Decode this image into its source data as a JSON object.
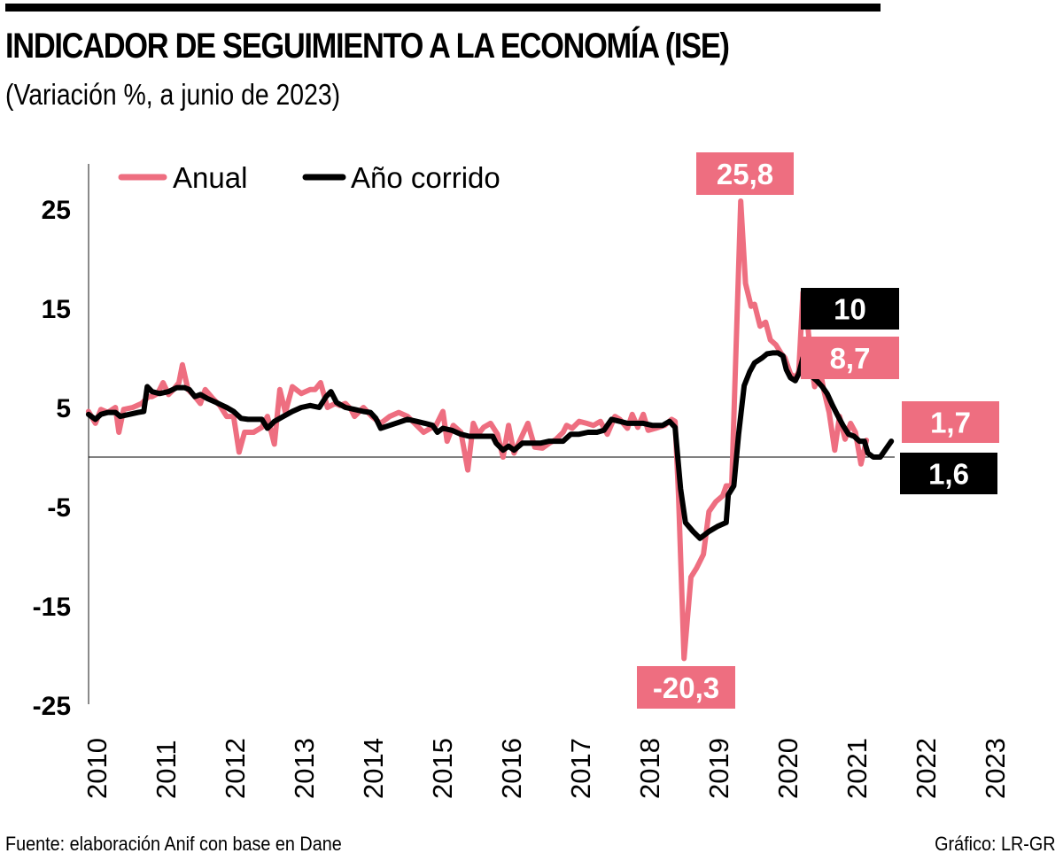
{
  "header": {
    "title": "INDICADOR DE SEGUIMIENTO A LA ECONOMÍA (ISE)",
    "subtitle": "(Variación %, a junio de 2023)"
  },
  "footer": {
    "source": "Fuente: elaboración Anif con base en Dane",
    "credit": "Gráfico: LR-GR"
  },
  "colors": {
    "anual": "#EE6E80",
    "ano_corrido": "#000000",
    "axis": "#8a8a8a"
  },
  "chart_data": {
    "type": "line",
    "title": "INDICADOR DE SEGUIMIENTO A LA ECONOMÍA (ISE)",
    "subtitle": "(Variación %, a junio de 2023)",
    "xlabel": "",
    "ylabel": "",
    "ylim": [
      -25,
      25
    ],
    "xlim": [
      2009.87,
      2023.25
    ],
    "yticks": [
      25,
      15,
      5,
      -5,
      -15,
      -25
    ],
    "ytick_labels": [
      "25",
      "15",
      "5",
      "-5",
      "-15",
      "-25"
    ],
    "xtick_labels": [
      "2010",
      "2011",
      "2012",
      "2013",
      "2014",
      "2015",
      "2016",
      "2017",
      "2018",
      "2019",
      "2020",
      "2021",
      "2022",
      "2023"
    ],
    "zero_line": true,
    "grid": false,
    "legend": {
      "position": "top-left",
      "entries": [
        "Anual",
        "Año corrido"
      ]
    },
    "series": [
      {
        "name": "Anual",
        "color": "#EE6E80",
        "x": [
          2009.87,
          2009.97,
          2010.05,
          2010.15,
          2010.26,
          2010.31,
          2010.38,
          2010.51,
          2010.64,
          2010.74,
          2010.79,
          2010.87,
          2010.95,
          2011.03,
          2011.1,
          2011.18,
          2011.23,
          2011.31,
          2011.41,
          2011.49,
          2011.56,
          2011.67,
          2011.77,
          2011.87,
          2011.97,
          2012.05,
          2012.13,
          2012.26,
          2012.38,
          2012.46,
          2012.56,
          2012.64,
          2012.72,
          2012.82,
          2012.95,
          2013.08,
          2013.15,
          2013.23,
          2013.33,
          2013.44,
          2013.51,
          2013.59,
          2013.67,
          2013.72,
          2013.85,
          2013.97,
          2014.1,
          2014.23,
          2014.36,
          2014.49,
          2014.62,
          2014.72,
          2014.82,
          2014.9,
          2015.0,
          2015.06,
          2015.15,
          2015.26,
          2015.36,
          2015.44,
          2015.51,
          2015.59,
          2015.69,
          2015.79,
          2015.87,
          2015.95,
          2016.03,
          2016.13,
          2016.23,
          2016.33,
          2016.44,
          2016.54,
          2016.64,
          2016.74,
          2016.79,
          2016.87,
          2016.97,
          2017.08,
          2017.18,
          2017.28,
          2017.38,
          2017.49,
          2017.56,
          2017.67,
          2017.74,
          2017.82,
          2017.9,
          2017.97,
          2018.08,
          2018.21,
          2018.31,
          2018.36,
          2018.41,
          2018.49,
          2018.59,
          2018.67,
          2018.77,
          2018.85,
          2018.95,
          2019.05,
          2019.1,
          2019.18,
          2019.31,
          2019.38,
          2019.46,
          2019.51,
          2019.59,
          2019.67,
          2019.74,
          2019.82,
          2019.9,
          2019.95,
          2020.03,
          2020.1,
          2020.15,
          2020.21,
          2020.26,
          2020.33,
          2020.38,
          2020.46,
          2020.51,
          2020.59,
          2020.67,
          2020.74,
          2020.82,
          2020.9,
          2020.97,
          2021.05,
          2021.13
        ],
        "values": [
          4.6,
          3.4,
          4.8,
          4.5,
          5.0,
          2.5,
          4.8,
          5.0,
          5.4,
          6.1,
          6.1,
          6.4,
          7.5,
          6.3,
          6.8,
          7.5,
          9.3,
          6.8,
          6.1,
          5.4,
          6.8,
          5.9,
          5.2,
          4.1,
          4.1,
          0.5,
          2.5,
          2.5,
          3.0,
          4.1,
          1.3,
          6.8,
          4.5,
          7.1,
          6.4,
          6.8,
          6.8,
          7.5,
          5.0,
          5.4,
          5.2,
          5.4,
          4.8,
          4.1,
          5.0,
          4.1,
          3.4,
          4.1,
          4.5,
          4.1,
          3.2,
          2.5,
          2.9,
          3.2,
          4.6,
          1.6,
          3.2,
          2.5,
          -1.3,
          3.4,
          2.3,
          3.0,
          3.4,
          2.3,
          0.0,
          3.2,
          0.4,
          1.9,
          3.4,
          1.0,
          0.9,
          1.4,
          1.8,
          2.5,
          3.2,
          2.9,
          3.6,
          3.4,
          3.2,
          3.6,
          2.3,
          4.1,
          3.8,
          2.9,
          4.3,
          3.0,
          4.3,
          2.7,
          2.9,
          3.2,
          3.8,
          3.6,
          -3.9,
          -20.3,
          -12.1,
          -11.2,
          -9.8,
          -5.5,
          -4.5,
          -3.9,
          -2.9,
          -2.9,
          25.8,
          17.5,
          15.2,
          15.4,
          13.2,
          13.6,
          11.8,
          11.3,
          10.4,
          10.0,
          8.4,
          8.0,
          8.6,
          16.6,
          14.8,
          9.5,
          7.1,
          8.7,
          6.8,
          4.5,
          0.7,
          4.1,
          1.8,
          3.4,
          2.5,
          -0.7,
          1.7
        ]
      },
      {
        "name": "Año corrido",
        "color": "#000000",
        "x": [
          2009.87,
          2009.97,
          2010.05,
          2010.15,
          2010.26,
          2010.33,
          2010.46,
          2010.59,
          2010.67,
          2010.72,
          2010.79,
          2010.9,
          2011.03,
          2011.15,
          2011.26,
          2011.33,
          2011.41,
          2011.49,
          2011.59,
          2011.72,
          2011.87,
          2011.97,
          2012.08,
          2012.18,
          2012.31,
          2012.38,
          2012.46,
          2012.56,
          2012.69,
          2012.82,
          2012.95,
          2013.08,
          2013.21,
          2013.31,
          2013.38,
          2013.46,
          2013.59,
          2013.72,
          2013.85,
          2013.95,
          2014.03,
          2014.1,
          2014.23,
          2014.36,
          2014.49,
          2014.62,
          2014.74,
          2014.85,
          2014.92,
          2015.0,
          2015.13,
          2015.26,
          2015.38,
          2015.51,
          2015.64,
          2015.72,
          2015.77,
          2015.87,
          2015.95,
          2016.03,
          2016.15,
          2016.28,
          2016.41,
          2016.54,
          2016.67,
          2016.74,
          2016.85,
          2016.97,
          2017.1,
          2017.23,
          2017.33,
          2017.44,
          2017.56,
          2017.67,
          2017.77,
          2017.9,
          2018.03,
          2018.18,
          2018.28,
          2018.36,
          2018.44,
          2018.51,
          2018.62,
          2018.72,
          2018.85,
          2018.97,
          2019.1,
          2019.13,
          2019.21,
          2019.28,
          2019.36,
          2019.44,
          2019.51,
          2019.62,
          2019.69,
          2019.77,
          2019.85,
          2019.92,
          2019.97,
          2020.03,
          2020.1,
          2020.15,
          2020.21,
          2020.26,
          2020.33,
          2020.41,
          2020.49,
          2020.56,
          2020.64,
          2020.72,
          2020.79,
          2020.87,
          2020.95,
          2021.03,
          2021.1,
          2021.15,
          2021.23,
          2021.33,
          2021.49
        ],
        "values": [
          4.3,
          3.8,
          4.3,
          4.5,
          4.5,
          4.1,
          4.3,
          4.5,
          4.6,
          7.1,
          6.6,
          6.4,
          6.6,
          7.0,
          7.0,
          6.8,
          6.1,
          6.3,
          5.9,
          5.5,
          5.0,
          4.6,
          3.9,
          3.8,
          3.8,
          3.8,
          2.9,
          3.6,
          4.1,
          4.6,
          5.0,
          5.2,
          5.0,
          6.1,
          6.6,
          5.5,
          5.0,
          4.8,
          4.6,
          4.5,
          3.9,
          2.9,
          3.2,
          3.5,
          3.8,
          3.6,
          3.4,
          3.2,
          2.5,
          2.9,
          2.7,
          2.3,
          2.1,
          2.1,
          2.1,
          2.1,
          1.4,
          0.7,
          1.1,
          0.7,
          1.4,
          1.4,
          1.4,
          1.6,
          1.6,
          1.6,
          2.3,
          2.3,
          2.5,
          2.5,
          2.7,
          3.8,
          3.6,
          3.4,
          3.4,
          3.4,
          3.2,
          3.2,
          3.6,
          3.0,
          -3.2,
          -6.6,
          -7.5,
          -8.2,
          -7.5,
          -7.0,
          -6.6,
          -3.8,
          -2.9,
          2.3,
          7.2,
          8.6,
          9.5,
          10.0,
          10.4,
          10.5,
          10.5,
          10.2,
          8.8,
          8.0,
          7.7,
          8.4,
          10.0,
          8.6,
          8.2,
          7.7,
          7.1,
          6.4,
          5.2,
          4.1,
          3.2,
          2.3,
          2.1,
          1.6,
          1.6,
          0.4,
          0.0,
          0.0,
          1.6
        ]
      }
    ],
    "annotations": [
      {
        "text": "25,8",
        "series": "Anual",
        "value": 25.8
      },
      {
        "text": "-20,3",
        "series": "Anual",
        "value": -20.3
      },
      {
        "text": "10",
        "series": "Año corrido",
        "value": 10
      },
      {
        "text": "8,7",
        "series": "Anual",
        "value": 8.7
      },
      {
        "text": "1,7",
        "series": "Anual",
        "value": 1.7
      },
      {
        "text": "1,6",
        "series": "Año corrido",
        "value": 1.6
      }
    ]
  }
}
